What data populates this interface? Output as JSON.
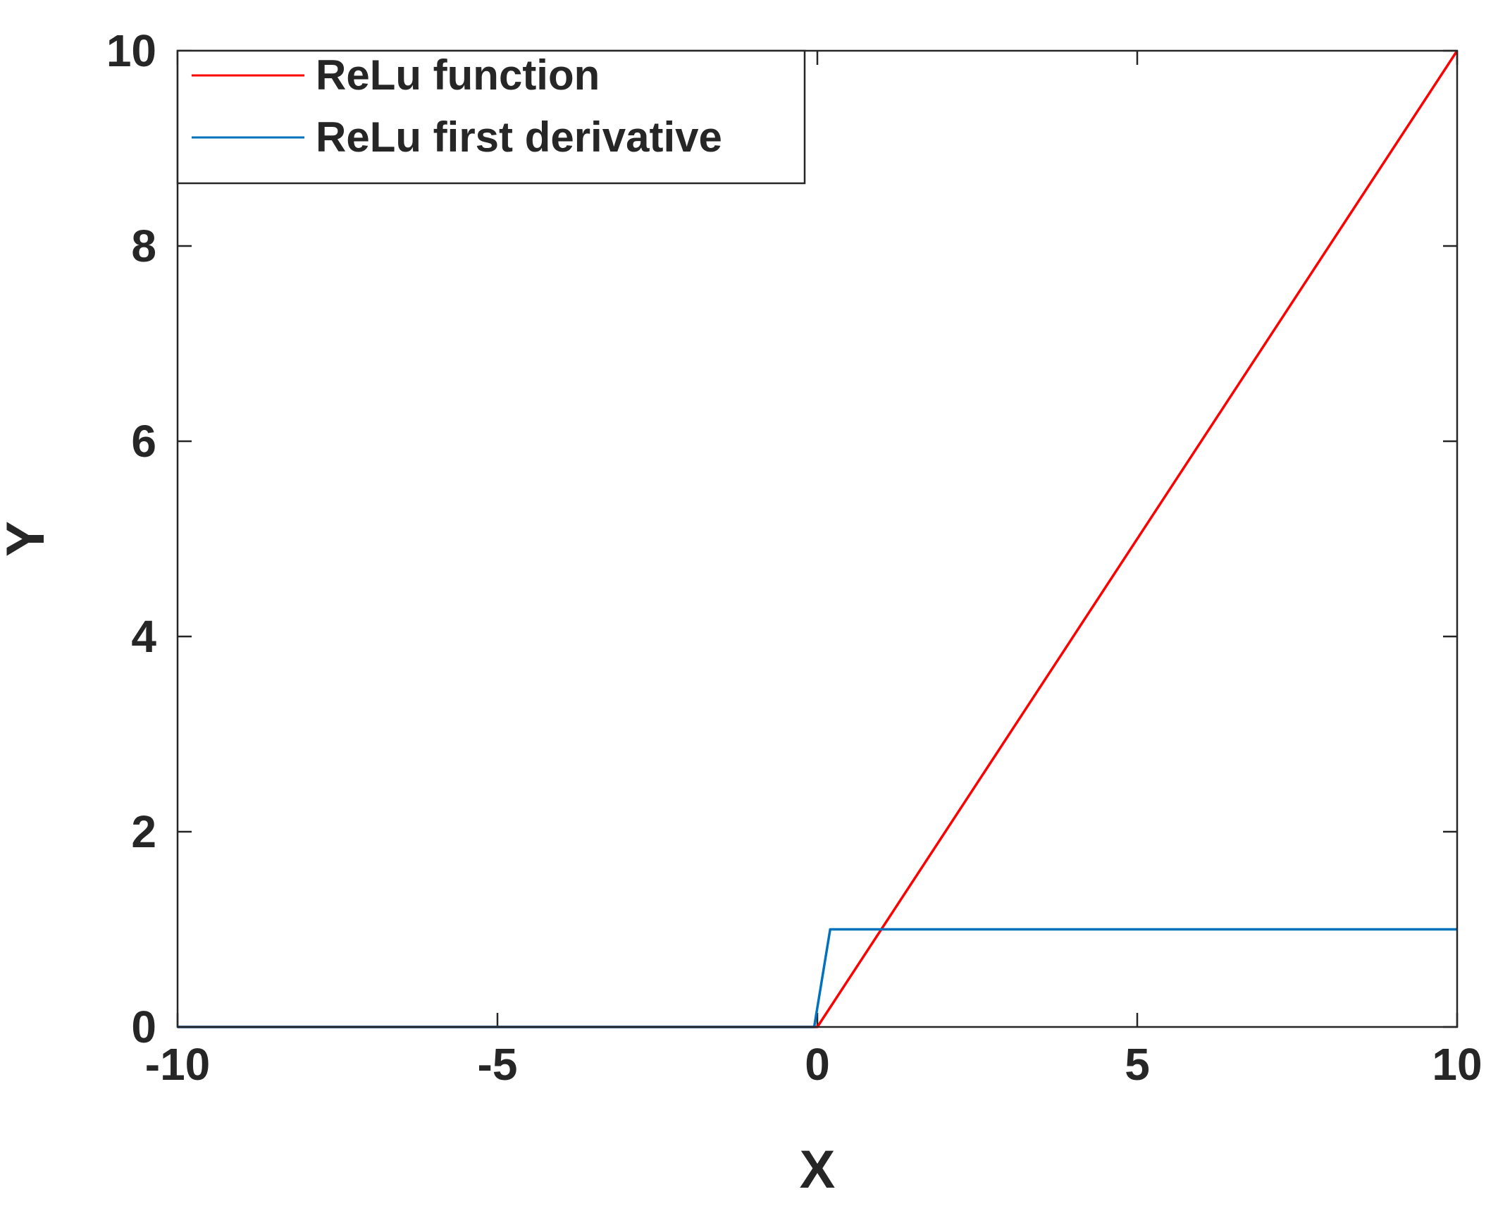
{
  "chart_data": {
    "type": "line",
    "title": "",
    "xlabel": "X",
    "ylabel": "Y",
    "xlim": [
      -10,
      10
    ],
    "ylim": [
      0,
      10
    ],
    "x_ticks": [
      -10,
      -5,
      0,
      5,
      10
    ],
    "x_tick_labels": [
      "-10",
      "-5",
      "0",
      "5",
      "10"
    ],
    "y_ticks": [
      0,
      2,
      4,
      6,
      8,
      10
    ],
    "y_tick_labels": [
      "0",
      "2",
      "4",
      "6",
      "8",
      "10"
    ],
    "grid": false,
    "legend_position": "top-left",
    "series": [
      {
        "name": "ReLu function",
        "color": "#ff0000",
        "x": [
          -10,
          0,
          10
        ],
        "y": [
          0,
          0,
          10
        ]
      },
      {
        "name": "ReLu first derivative",
        "color": "#0072bd",
        "x": [
          -10,
          -0.05,
          0.2,
          10
        ],
        "y": [
          0,
          0,
          1,
          1
        ]
      }
    ]
  }
}
